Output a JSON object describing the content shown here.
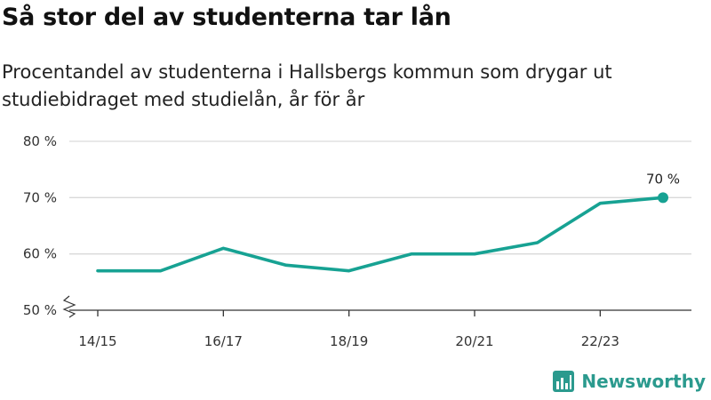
{
  "title": "Så stor del av studenterna tar lån",
  "subtitle": "Procentandel av studenterna i Hallsbergs kommun som drygar ut studiebidraget med studielån, år för år",
  "brand": {
    "name": "Newsworthy",
    "icon": "newsworthy-logo-icon"
  },
  "colors": {
    "line": "#17a293",
    "grid": "#d9d9d9",
    "text": "#333333",
    "brand": "#2b9a8e"
  },
  "chart_data": {
    "type": "line",
    "title": "Så stor del av studenterna tar lån",
    "xlabel": "",
    "ylabel": "",
    "x": [
      "14/15",
      "15/16",
      "16/17",
      "17/18",
      "18/19",
      "19/20",
      "20/21",
      "21/22",
      "22/23",
      "23/24"
    ],
    "x_ticks": [
      "14/15",
      "16/17",
      "18/19",
      "20/21",
      "22/23"
    ],
    "y_ticks": [
      "50 %",
      "60 %",
      "70 %",
      "80 %"
    ],
    "ylim": [
      50,
      80
    ],
    "axis_break": true,
    "grid": true,
    "series": [
      {
        "values": [
          57,
          57,
          61,
          58,
          57,
          60,
          60,
          62,
          69,
          70
        ]
      }
    ],
    "annotations": [
      {
        "x": "23/24",
        "y": 70,
        "text": "70 %"
      }
    ]
  }
}
